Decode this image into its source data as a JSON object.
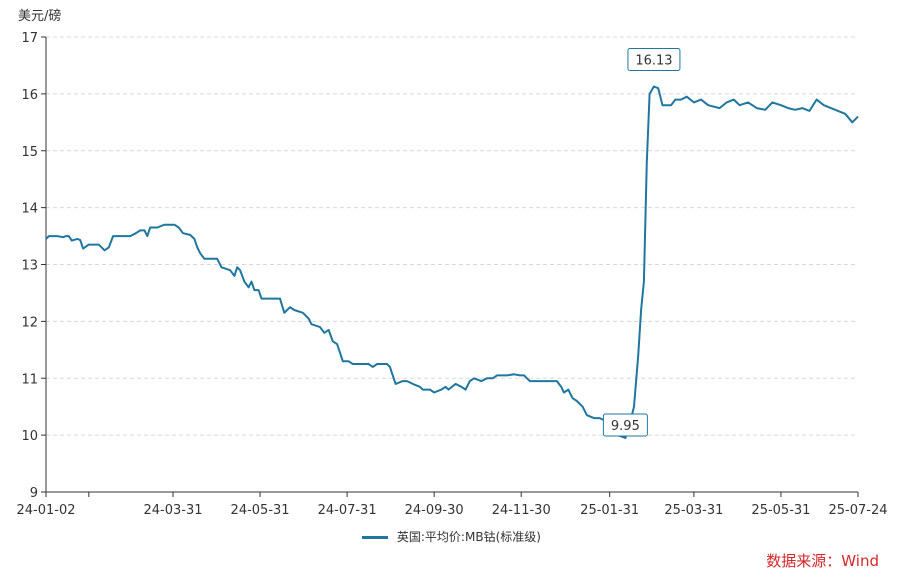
{
  "y_unit": "美元/磅",
  "source": "数据来源：Wind",
  "colors": {
    "series": "#1f77a0",
    "axis": "#333333",
    "grid": "#d9d9d9",
    "source": "#d62728",
    "annotation_border": "#1f77a0"
  },
  "chart_data": {
    "type": "line",
    "title": "",
    "xlabel": "",
    "ylabel": "美元/磅",
    "ylim": [
      9,
      17
    ],
    "yticks": [
      9,
      10,
      11,
      12,
      13,
      14,
      15,
      16,
      17
    ],
    "xticks": [
      "24-01-02",
      "24-03-31",
      "24-05-31",
      "24-07-31",
      "24-09-30",
      "24-11-30",
      "25-01-31",
      "25-03-31",
      "25-05-31",
      "25-07-24"
    ],
    "xlim": [
      "2024-01-02",
      "2025-07-24"
    ],
    "grid": true,
    "legend_position": "bottom-center",
    "series": [
      {
        "name": "英国:平均价:MB钴(标准级)",
        "points": [
          [
            "2024-01-02",
            13.45
          ],
          [
            "2024-01-04",
            13.5
          ],
          [
            "2024-01-10",
            13.5
          ],
          [
            "2024-01-14",
            13.48
          ],
          [
            "2024-01-16",
            13.5
          ],
          [
            "2024-01-18",
            13.5
          ],
          [
            "2024-01-20",
            13.42
          ],
          [
            "2024-01-24",
            13.45
          ],
          [
            "2024-01-26",
            13.43
          ],
          [
            "2024-01-28",
            13.28
          ],
          [
            "2024-02-01",
            13.35
          ],
          [
            "2024-02-08",
            13.35
          ],
          [
            "2024-02-12",
            13.25
          ],
          [
            "2024-02-15",
            13.3
          ],
          [
            "2024-02-18",
            13.5
          ],
          [
            "2024-02-25",
            13.5
          ],
          [
            "2024-03-01",
            13.5
          ],
          [
            "2024-03-05",
            13.55
          ],
          [
            "2024-03-08",
            13.6
          ],
          [
            "2024-03-11",
            13.6
          ],
          [
            "2024-03-13",
            13.5
          ],
          [
            "2024-03-15",
            13.65
          ],
          [
            "2024-03-20",
            13.65
          ],
          [
            "2024-03-25",
            13.7
          ],
          [
            "2024-04-01",
            13.7
          ],
          [
            "2024-04-04",
            13.65
          ],
          [
            "2024-04-07",
            13.55
          ],
          [
            "2024-04-12",
            13.52
          ],
          [
            "2024-04-15",
            13.45
          ],
          [
            "2024-04-17",
            13.3
          ],
          [
            "2024-04-19",
            13.2
          ],
          [
            "2024-04-22",
            13.1
          ],
          [
            "2024-04-26",
            13.1
          ],
          [
            "2024-05-01",
            13.1
          ],
          [
            "2024-05-04",
            12.95
          ],
          [
            "2024-05-10",
            12.9
          ],
          [
            "2024-05-13",
            12.8
          ],
          [
            "2024-05-15",
            12.95
          ],
          [
            "2024-05-17",
            12.9
          ],
          [
            "2024-05-20",
            12.7
          ],
          [
            "2024-05-23",
            12.6
          ],
          [
            "2024-05-25",
            12.7
          ],
          [
            "2024-05-27",
            12.55
          ],
          [
            "2024-05-30",
            12.55
          ],
          [
            "2024-06-01",
            12.4
          ],
          [
            "2024-06-10",
            12.4
          ],
          [
            "2024-06-14",
            12.4
          ],
          [
            "2024-06-17",
            12.15
          ],
          [
            "2024-06-19",
            12.2
          ],
          [
            "2024-06-21",
            12.25
          ],
          [
            "2024-06-24",
            12.2
          ],
          [
            "2024-06-30",
            12.15
          ],
          [
            "2024-07-04",
            12.05
          ],
          [
            "2024-07-06",
            11.95
          ],
          [
            "2024-07-12",
            11.9
          ],
          [
            "2024-07-15",
            11.8
          ],
          [
            "2024-07-18",
            11.85
          ],
          [
            "2024-07-21",
            11.65
          ],
          [
            "2024-07-24",
            11.6
          ],
          [
            "2024-07-26",
            11.45
          ],
          [
            "2024-07-28",
            11.3
          ],
          [
            "2024-08-01",
            11.3
          ],
          [
            "2024-08-04",
            11.25
          ],
          [
            "2024-08-15",
            11.25
          ],
          [
            "2024-08-18",
            11.2
          ],
          [
            "2024-08-21",
            11.25
          ],
          [
            "2024-08-28",
            11.25
          ],
          [
            "2024-08-30",
            11.2
          ],
          [
            "2024-09-03",
            10.9
          ],
          [
            "2024-09-08",
            10.95
          ],
          [
            "2024-09-11",
            10.95
          ],
          [
            "2024-09-15",
            10.9
          ],
          [
            "2024-09-20",
            10.85
          ],
          [
            "2024-09-22",
            10.8
          ],
          [
            "2024-09-27",
            10.8
          ],
          [
            "2024-09-30",
            10.75
          ],
          [
            "2024-10-05",
            10.8
          ],
          [
            "2024-10-08",
            10.85
          ],
          [
            "2024-10-10",
            10.8
          ],
          [
            "2024-10-15",
            10.9
          ],
          [
            "2024-10-19",
            10.85
          ],
          [
            "2024-10-22",
            10.8
          ],
          [
            "2024-10-25",
            10.95
          ],
          [
            "2024-10-28",
            11.0
          ],
          [
            "2024-11-02",
            10.95
          ],
          [
            "2024-11-06",
            11.0
          ],
          [
            "2024-11-10",
            11.0
          ],
          [
            "2024-11-13",
            11.05
          ],
          [
            "2024-11-20",
            11.05
          ],
          [
            "2024-11-25",
            11.07
          ],
          [
            "2024-11-29",
            11.05
          ],
          [
            "2024-12-02",
            11.05
          ],
          [
            "2024-12-06",
            10.95
          ],
          [
            "2024-12-15",
            10.95
          ],
          [
            "2024-12-20",
            10.95
          ],
          [
            "2024-12-25",
            10.95
          ],
          [
            "2024-12-28",
            10.85
          ],
          [
            "2024-12-30",
            10.75
          ],
          [
            "2025-01-02",
            10.8
          ],
          [
            "2025-01-05",
            10.65
          ],
          [
            "2025-01-08",
            10.6
          ],
          [
            "2025-01-12",
            10.5
          ],
          [
            "2025-01-15",
            10.35
          ],
          [
            "2025-01-20",
            10.3
          ],
          [
            "2025-01-24",
            10.3
          ],
          [
            "2025-01-28",
            10.25
          ],
          [
            "2025-02-01",
            10.05
          ],
          [
            "2025-02-05",
            10.0
          ],
          [
            "2025-02-08",
            9.98
          ],
          [
            "2025-02-11",
            9.95
          ],
          [
            "2025-02-14",
            10.2
          ],
          [
            "2025-02-17",
            10.5
          ],
          [
            "2025-02-20",
            11.4
          ],
          [
            "2025-02-22",
            12.2
          ],
          [
            "2025-02-24",
            12.7
          ],
          [
            "2025-02-26",
            14.8
          ],
          [
            "2025-02-28",
            16.0
          ],
          [
            "2025-03-03",
            16.13
          ],
          [
            "2025-03-06",
            16.1
          ],
          [
            "2025-03-09",
            15.8
          ],
          [
            "2025-03-15",
            15.8
          ],
          [
            "2025-03-18",
            15.9
          ],
          [
            "2025-03-22",
            15.9
          ],
          [
            "2025-03-26",
            15.95
          ],
          [
            "2025-03-31",
            15.85
          ],
          [
            "2025-04-05",
            15.9
          ],
          [
            "2025-04-10",
            15.8
          ],
          [
            "2025-04-18",
            15.75
          ],
          [
            "2025-04-23",
            15.85
          ],
          [
            "2025-04-28",
            15.9
          ],
          [
            "2025-05-02",
            15.8
          ],
          [
            "2025-05-08",
            15.85
          ],
          [
            "2025-05-14",
            15.75
          ],
          [
            "2025-05-20",
            15.72
          ],
          [
            "2025-05-25",
            15.85
          ],
          [
            "2025-05-31",
            15.8
          ],
          [
            "2025-06-05",
            15.75
          ],
          [
            "2025-06-10",
            15.72
          ],
          [
            "2025-06-15",
            15.75
          ],
          [
            "2025-06-20",
            15.7
          ],
          [
            "2025-06-25",
            15.9
          ],
          [
            "2025-06-30",
            15.8
          ],
          [
            "2025-07-05",
            15.75
          ],
          [
            "2025-07-10",
            15.7
          ],
          [
            "2025-07-15",
            15.65
          ],
          [
            "2025-07-20",
            15.5
          ],
          [
            "2025-07-24",
            15.6
          ]
        ]
      }
    ],
    "annotations": [
      {
        "x": "2025-03-03",
        "y": 16.13,
        "label": "16.13"
      },
      {
        "x": "2025-02-11",
        "y": 9.95,
        "label": "9.95"
      }
    ]
  }
}
